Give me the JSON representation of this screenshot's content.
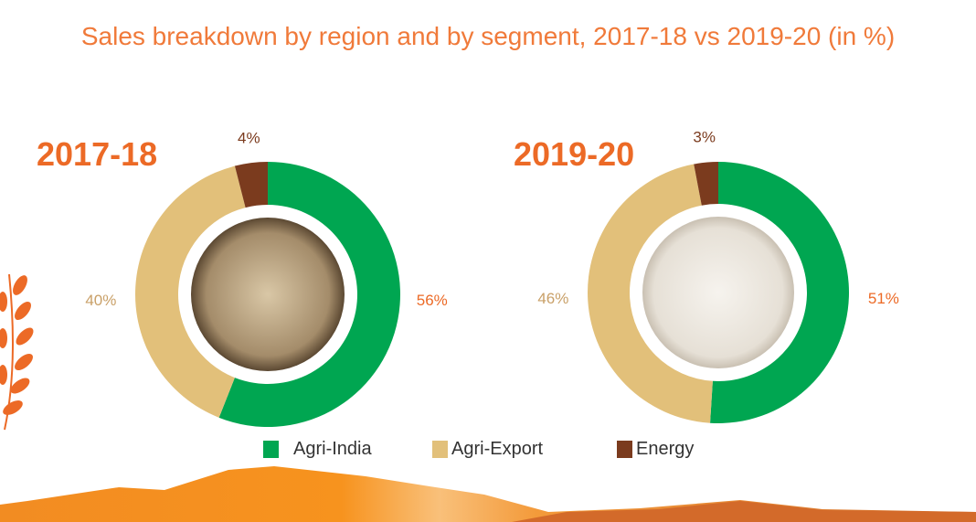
{
  "chart_data": {
    "type": "pie",
    "title": "Sales breakdown by region and by segment, 2017-18 vs 2019-20 (in %)",
    "legend": [
      "Agri-India",
      "Agri-Export",
      "Energy"
    ],
    "legend_position": "bottom",
    "colors": {
      "Agri-India": "#00a651",
      "Agri-Export": "#e2c07a",
      "Energy": "#7b3b1e"
    },
    "charts": [
      {
        "year": "2017-18",
        "values": {
          "Agri-India": 56,
          "Agri-Export": 40,
          "Energy": 4
        },
        "labels": {
          "Agri-India": "56%",
          "Agri-Export": "40%",
          "Energy": "4%"
        }
      },
      {
        "year": "2019-20",
        "values": {
          "Agri-India": 51,
          "Agri-Export": 46,
          "Energy": 3
        },
        "labels": {
          "Agri-India": "51%",
          "Agri-Export": "46%",
          "Energy": "3%"
        }
      }
    ]
  }
}
